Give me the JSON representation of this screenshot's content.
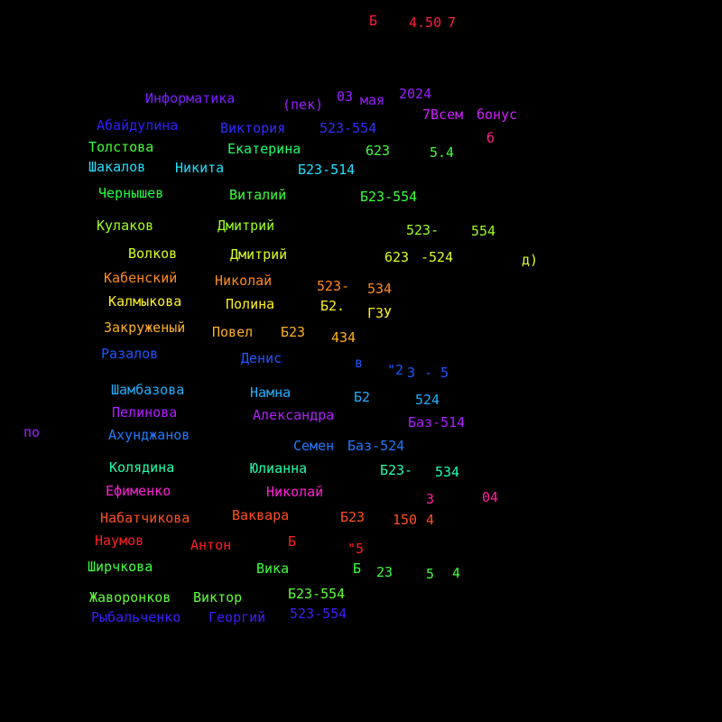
{
  "colors": {
    "background": "#000000",
    "red": "#ff1f3a",
    "red2": "#ff2a1f",
    "orange_red": "#ff4f1f",
    "orange": "#ff8a1f",
    "amber": "#ffb01f",
    "yellow": "#fff11f",
    "yellow_green": "#d6ff1f",
    "light_green": "#9dff1f",
    "green": "#3dff3a",
    "spring": "#1fff6b",
    "mint": "#1fffae",
    "cyan": "#1fe0ff",
    "sky": "#1fb0ff",
    "blue": "#1f55ff",
    "indigo": "#2f1fff",
    "violet": "#7a1fff",
    "purple": "#b01fff",
    "magenta": "#ff1fd6",
    "pink": "#ff1f86"
  },
  "words": [
    {
      "text": "Б",
      "color": "#ff1f3a"
    },
    {
      "text": "4.50",
      "color": "#ff1f3a"
    },
    {
      "text": "7",
      "color": "#ff1f3a"
    },
    {
      "text": "Информатика",
      "color": "#7a1fff"
    },
    {
      "text": "(пек)",
      "color": "#9a1fff"
    },
    {
      "text": "03",
      "color": "#9a1fff"
    },
    {
      "text": "мая",
      "color": "#9a1fff"
    },
    {
      "text": "2024",
      "color": "#9a1fff"
    },
    {
      "text": "7Всем",
      "color": "#d01fff"
    },
    {
      "text": "бонус",
      "color": "#d01fff"
    },
    {
      "text": "б",
      "color": "#ff1f86"
    },
    {
      "text": "Абайдулина",
      "color": "#2f1fff"
    },
    {
      "text": "Виктория",
      "color": "#2f2fff"
    },
    {
      "text": "523-554",
      "color": "#2f2fff"
    },
    {
      "text": "Толстова",
      "color": "#3dff3a"
    },
    {
      "text": "Екатерина",
      "color": "#1fff6b"
    },
    {
      "text": "623",
      "color": "#3dff3a"
    },
    {
      "text": "5.4",
      "color": "#3dff3a"
    },
    {
      "text": "Шакалов",
      "color": "#1fe0ff"
    },
    {
      "text": "Никита",
      "color": "#1fe0ff"
    },
    {
      "text": "Б23-514",
      "color": "#1fe0ff"
    },
    {
      "text": "Чернышев",
      "color": "#1fff3a"
    },
    {
      "text": "Виталий",
      "color": "#3dff3a"
    },
    {
      "text": "Б23-554",
      "color": "#3dff3a"
    },
    {
      "text": "Кулаков",
      "color": "#9dff1f"
    },
    {
      "text": "Дмитрий",
      "color": "#9dff1f"
    },
    {
      "text": "523-",
      "color": "#9dff1f"
    },
    {
      "text": "554",
      "color": "#9dff1f"
    },
    {
      "text": "Волков",
      "color": "#d6ff1f"
    },
    {
      "text": "Дмитрий",
      "color": "#d6ff1f"
    },
    {
      "text": "623",
      "color": "#d6ff1f"
    },
    {
      "text": "-524",
      "color": "#d6ff1f"
    },
    {
      "text": "д)",
      "color": "#d6ff1f"
    },
    {
      "text": "Кабенский",
      "color": "#ff8a1f"
    },
    {
      "text": "Николай",
      "color": "#ff8a1f"
    },
    {
      "text": "523-",
      "color": "#ff8a1f"
    },
    {
      "text": "534",
      "color": "#ff8a1f"
    },
    {
      "text": "Калмыкова",
      "color": "#fff11f"
    },
    {
      "text": "Полина",
      "color": "#fff11f"
    },
    {
      "text": "Б2.",
      "color": "#fff11f"
    },
    {
      "text": "ГЗУ",
      "color": "#fff11f"
    },
    {
      "text": "Закруженый",
      "color": "#ffb01f"
    },
    {
      "text": "Повел",
      "color": "#ffb01f"
    },
    {
      "text": "Б23",
      "color": "#ffb01f"
    },
    {
      "text": "434",
      "color": "#ffb01f"
    },
    {
      "text": "Разалов",
      "color": "#1f55ff"
    },
    {
      "text": "Денис",
      "color": "#1f55ff"
    },
    {
      "text": "в",
      "color": "#1f55ff"
    },
    {
      "text": "\"2",
      "color": "#1f55ff"
    },
    {
      "text": "3",
      "color": "#1f55ff"
    },
    {
      "text": "- 5",
      "color": "#1f55ff"
    },
    {
      "text": "Шамбазова",
      "color": "#1fb0ff"
    },
    {
      "text": "Намна",
      "color": "#1fb0ff"
    },
    {
      "text": "Б2",
      "color": "#1fb0ff"
    },
    {
      "text": "524",
      "color": "#1fb0ff"
    },
    {
      "text": "Пелинова",
      "color": "#b01fff"
    },
    {
      "text": "Александра",
      "color": "#b01fff"
    },
    {
      "text": "Баз-514",
      "color": "#b01fff"
    },
    {
      "text": "по",
      "color": "#a01fff"
    },
    {
      "text": "Ахунджанов",
      "color": "#1f7aff"
    },
    {
      "text": "Семен",
      "color": "#1f7aff"
    },
    {
      "text": "Баз-524",
      "color": "#1f7aff"
    },
    {
      "text": "Колядина",
      "color": "#1fffae"
    },
    {
      "text": "Юлианна",
      "color": "#1fffae"
    },
    {
      "text": "Б23-",
      "color": "#1fffae"
    },
    {
      "text": "534",
      "color": "#1fffae"
    },
    {
      "text": "Ефименко",
      "color": "#ff1fd6"
    },
    {
      "text": "Николай",
      "color": "#ff1fd6"
    },
    {
      "text": "3",
      "color": "#ff1fa0"
    },
    {
      "text": "04",
      "color": "#ff1fa0"
    },
    {
      "text": "Набатчикова",
      "color": "#ff4f1f"
    },
    {
      "text": "Ваквара",
      "color": "#ff4f1f"
    },
    {
      "text": "Б23",
      "color": "#ff4f1f"
    },
    {
      "text": "150",
      "color": "#ff4f1f"
    },
    {
      "text": "4",
      "color": "#ff4f1f"
    },
    {
      "text": "Наумов",
      "color": "#ff1f1f"
    },
    {
      "text": "Антон",
      "color": "#ff1f1f"
    },
    {
      "text": "Б",
      "color": "#ff1f1f"
    },
    {
      "text": "\"5",
      "color": "#ff1f1f"
    },
    {
      "text": "Ширчкова",
      "color": "#3dff3a"
    },
    {
      "text": "Вика",
      "color": "#3dff3a"
    },
    {
      "text": "Б",
      "color": "#3dff3a"
    },
    {
      "text": "23",
      "color": "#3dff3a"
    },
    {
      "text": "5",
      "color": "#3dff3a"
    },
    {
      "text": "4",
      "color": "#3dff3a"
    },
    {
      "text": "Жаворонков",
      "color": "#5dff3a"
    },
    {
      "text": "Виктор",
      "color": "#5dff3a"
    },
    {
      "text": "Б23-554",
      "color": "#5dff3a"
    },
    {
      "text": "Рыбальченко",
      "color": "#3a1fff"
    },
    {
      "text": "Георгий",
      "color": "#3a1fff"
    },
    {
      "text": "523-554",
      "color": "#3a1fff"
    }
  ]
}
